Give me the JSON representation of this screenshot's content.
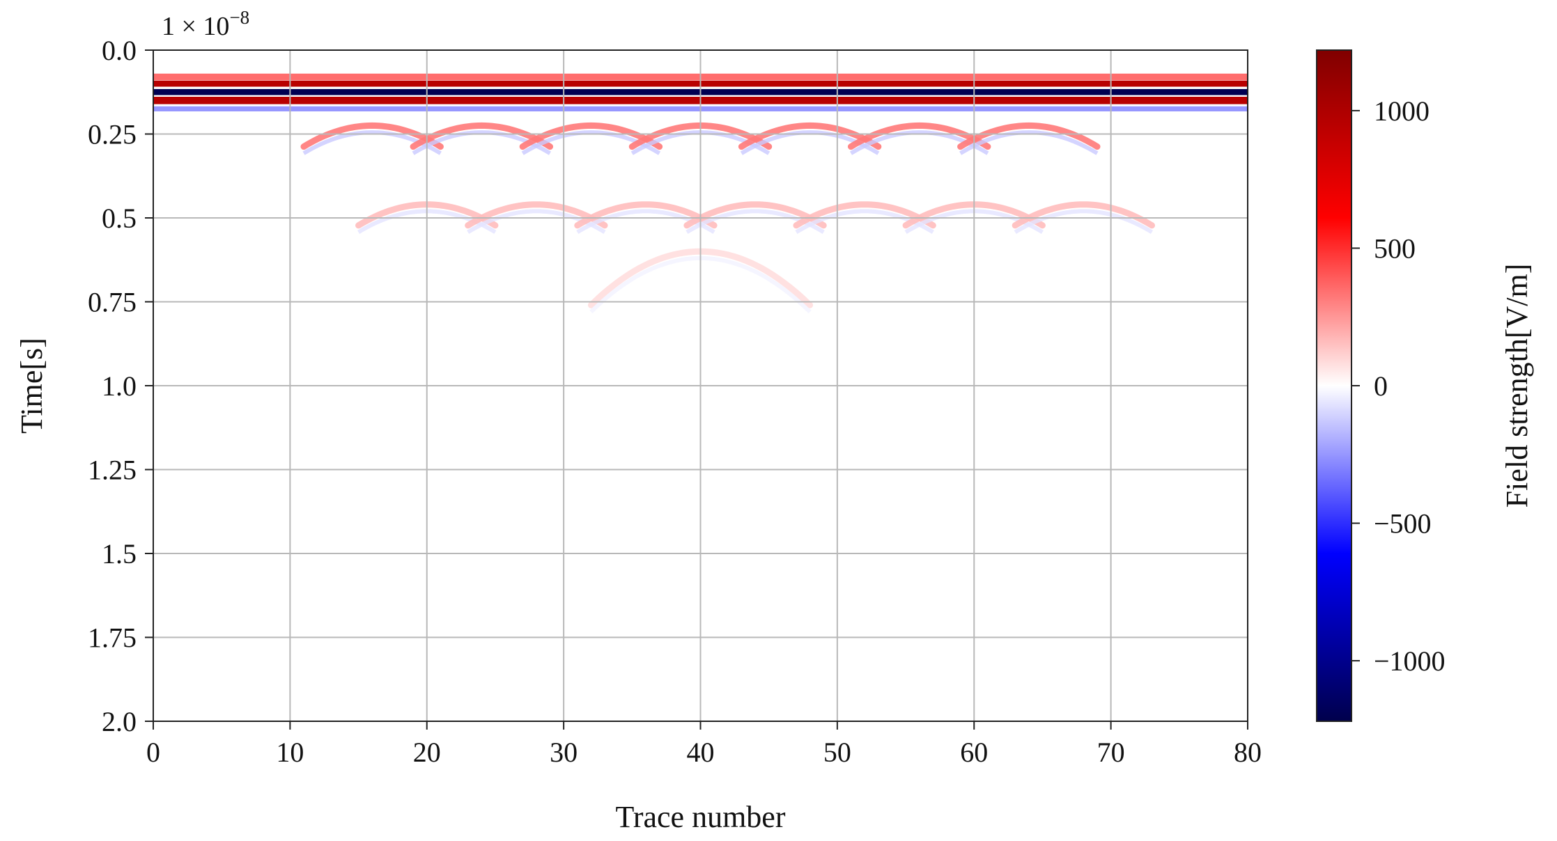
{
  "chart_data": {
    "type": "heatmap",
    "title": "",
    "xlabel": "Trace number",
    "ylabel": "Time[s]",
    "y_scale_label": "1 × 10",
    "y_scale_exponent": "−8",
    "xlim": [
      0,
      80
    ],
    "ylim": [
      2.0,
      0.0
    ],
    "y_inverted": true,
    "grid": true,
    "x_ticks": [
      0,
      10,
      20,
      30,
      40,
      50,
      60,
      70,
      80
    ],
    "x_tick_labels": [
      "0",
      "10",
      "20",
      "30",
      "40",
      "50",
      "60",
      "70",
      "80"
    ],
    "y_ticks": [
      0.0,
      0.25,
      0.5,
      0.75,
      1.0,
      1.25,
      1.5,
      1.75,
      2.0
    ],
    "y_tick_labels": [
      "0.0",
      "0.25",
      "0.5",
      "0.75",
      "1.0",
      "1.25",
      "1.5",
      "1.75",
      "2.0"
    ],
    "colorbar": {
      "label": "Field strength[V/m]",
      "range": [
        -1220,
        1220
      ],
      "ticks": [
        1000,
        500,
        0,
        -500,
        -1000
      ],
      "tick_labels": [
        "1000",
        "500",
        "0",
        "−500",
        "−1000"
      ],
      "colormap": "seismic",
      "colors": [
        "#00004c",
        "#0000ff",
        "#ffffff",
        "#ff0000",
        "#800000"
      ]
    },
    "direct_wave_bands": [
      {
        "time": 0.08,
        "thickness": 0.02,
        "value": 350
      },
      {
        "time": 0.1,
        "thickness": 0.018,
        "value": 950
      },
      {
        "time": 0.125,
        "thickness": 0.018,
        "value": -1200
      },
      {
        "time": 0.15,
        "thickness": 0.022,
        "value": 950
      },
      {
        "time": 0.175,
        "thickness": 0.015,
        "value": -250
      }
    ],
    "hyperbolas_primary": {
      "apex_traces": [
        16,
        24,
        32,
        40,
        48,
        56,
        64
      ],
      "apex_time": 0.225,
      "half_width": 5,
      "value": 320
    },
    "hyperbolas_secondary": {
      "apex_traces": [
        20,
        28,
        36,
        44,
        52,
        60,
        68
      ],
      "apex_time": 0.46,
      "half_width": 5,
      "value": 160
    },
    "hyperbolas_tertiary": {
      "apex_traces": [
        40
      ],
      "apex_time": 0.6,
      "half_width": 8,
      "value": 80
    }
  }
}
